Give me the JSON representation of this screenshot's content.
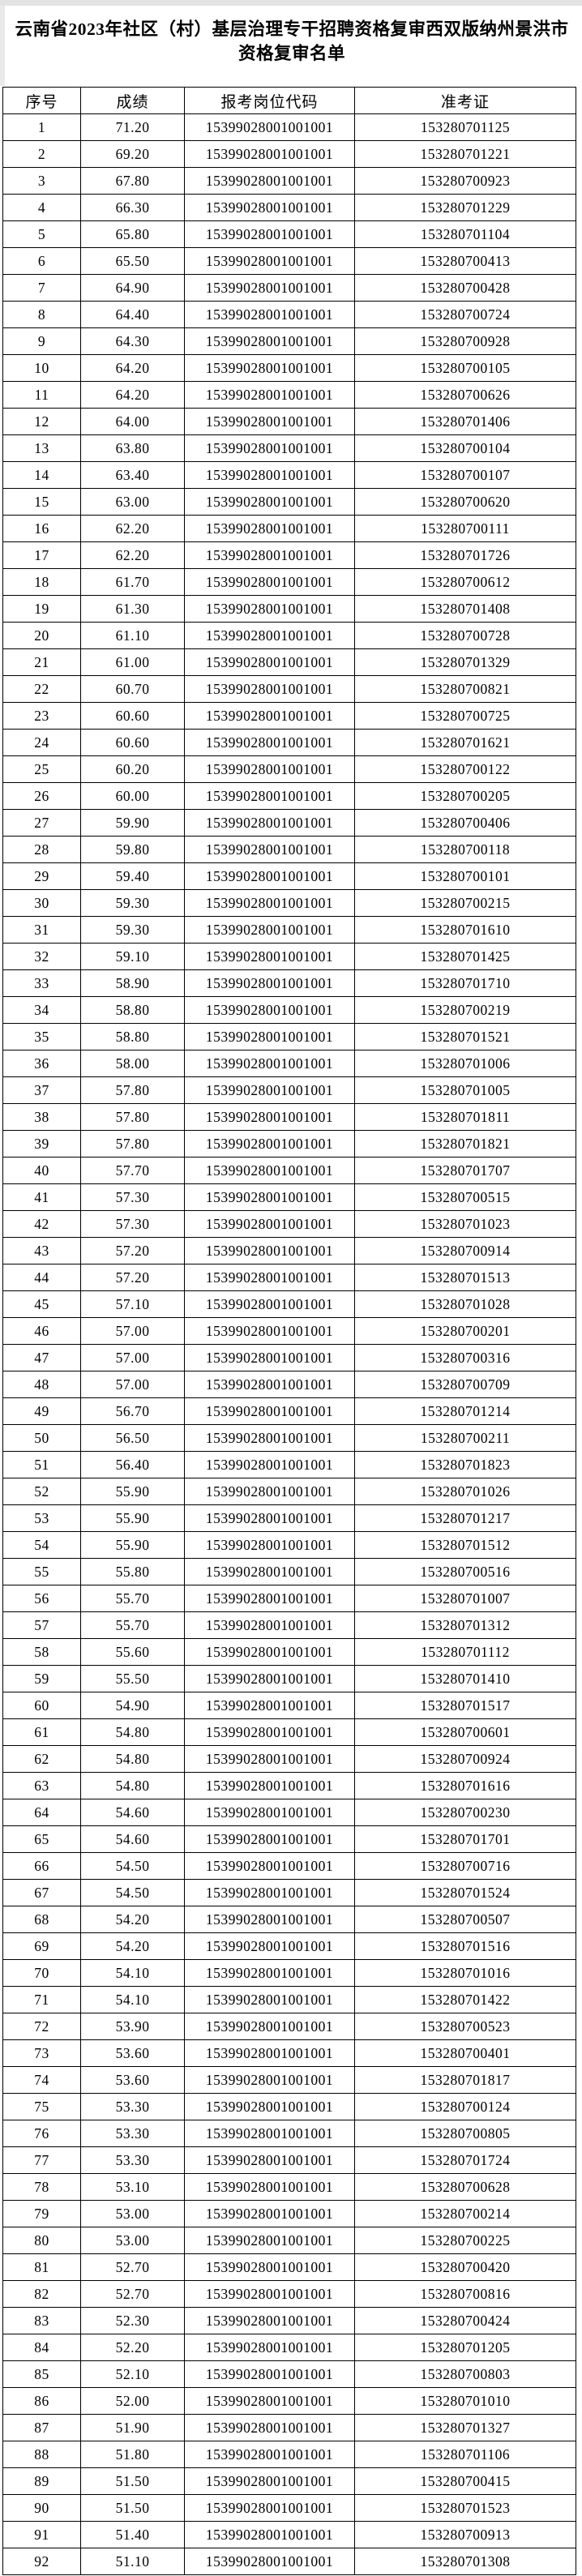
{
  "title": "云南省2023年社区（村）基层治理专干招聘资格复审西双版纳州景洪市资格复审名单",
  "table": {
    "headers": [
      "序号",
      "成绩",
      "报考岗位代码",
      "准考证"
    ],
    "position_code": "15399028001001001",
    "rows": [
      [
        "1",
        "71.20",
        "153280701125"
      ],
      [
        "2",
        "69.20",
        "153280701221"
      ],
      [
        "3",
        "67.80",
        "153280700923"
      ],
      [
        "4",
        "66.30",
        "153280701229"
      ],
      [
        "5",
        "65.80",
        "153280701104"
      ],
      [
        "6",
        "65.50",
        "153280700413"
      ],
      [
        "7",
        "64.90",
        "153280700428"
      ],
      [
        "8",
        "64.40",
        "153280700724"
      ],
      [
        "9",
        "64.30",
        "153280700928"
      ],
      [
        "10",
        "64.20",
        "153280700105"
      ],
      [
        "11",
        "64.20",
        "153280700626"
      ],
      [
        "12",
        "64.00",
        "153280701406"
      ],
      [
        "13",
        "63.80",
        "153280700104"
      ],
      [
        "14",
        "63.40",
        "153280700107"
      ],
      [
        "15",
        "63.00",
        "153280700620"
      ],
      [
        "16",
        "62.20",
        "153280700111"
      ],
      [
        "17",
        "62.20",
        "153280701726"
      ],
      [
        "18",
        "61.70",
        "153280700612"
      ],
      [
        "19",
        "61.30",
        "153280701408"
      ],
      [
        "20",
        "61.10",
        "153280700728"
      ],
      [
        "21",
        "61.00",
        "153280701329"
      ],
      [
        "22",
        "60.70",
        "153280700821"
      ],
      [
        "23",
        "60.60",
        "153280700725"
      ],
      [
        "24",
        "60.60",
        "153280701621"
      ],
      [
        "25",
        "60.20",
        "153280700122"
      ],
      [
        "26",
        "60.00",
        "153280700205"
      ],
      [
        "27",
        "59.90",
        "153280700406"
      ],
      [
        "28",
        "59.80",
        "153280700118"
      ],
      [
        "29",
        "59.40",
        "153280700101"
      ],
      [
        "30",
        "59.30",
        "153280700215"
      ],
      [
        "31",
        "59.30",
        "153280701610"
      ],
      [
        "32",
        "59.10",
        "153280701425"
      ],
      [
        "33",
        "58.90",
        "153280701710"
      ],
      [
        "34",
        "58.80",
        "153280700219"
      ],
      [
        "35",
        "58.80",
        "153280701521"
      ],
      [
        "36",
        "58.00",
        "153280701006"
      ],
      [
        "37",
        "57.80",
        "153280701005"
      ],
      [
        "38",
        "57.80",
        "153280701811"
      ],
      [
        "39",
        "57.80",
        "153280701821"
      ],
      [
        "40",
        "57.70",
        "153280701707"
      ],
      [
        "41",
        "57.30",
        "153280700515"
      ],
      [
        "42",
        "57.30",
        "153280701023"
      ],
      [
        "43",
        "57.20",
        "153280700914"
      ],
      [
        "44",
        "57.20",
        "153280701513"
      ],
      [
        "45",
        "57.10",
        "153280701028"
      ],
      [
        "46",
        "57.00",
        "153280700201"
      ],
      [
        "47",
        "57.00",
        "153280700316"
      ],
      [
        "48",
        "57.00",
        "153280700709"
      ],
      [
        "49",
        "56.70",
        "153280701214"
      ],
      [
        "50",
        "56.50",
        "153280700211"
      ],
      [
        "51",
        "56.40",
        "153280701823"
      ],
      [
        "52",
        "55.90",
        "153280701026"
      ],
      [
        "53",
        "55.90",
        "153280701217"
      ],
      [
        "54",
        "55.90",
        "153280701512"
      ],
      [
        "55",
        "55.80",
        "153280700516"
      ],
      [
        "56",
        "55.70",
        "153280701007"
      ],
      [
        "57",
        "55.70",
        "153280701312"
      ],
      [
        "58",
        "55.60",
        "153280701112"
      ],
      [
        "59",
        "55.50",
        "153280701410"
      ],
      [
        "60",
        "54.90",
        "153280701517"
      ],
      [
        "61",
        "54.80",
        "153280700601"
      ],
      [
        "62",
        "54.80",
        "153280700924"
      ],
      [
        "63",
        "54.80",
        "153280701616"
      ],
      [
        "64",
        "54.60",
        "153280700230"
      ],
      [
        "65",
        "54.60",
        "153280701701"
      ],
      [
        "66",
        "54.50",
        "153280700716"
      ],
      [
        "67",
        "54.50",
        "153280701524"
      ],
      [
        "68",
        "54.20",
        "153280700507"
      ],
      [
        "69",
        "54.20",
        "153280701516"
      ],
      [
        "70",
        "54.10",
        "153280701016"
      ],
      [
        "71",
        "54.10",
        "153280701422"
      ],
      [
        "72",
        "53.90",
        "153280700523"
      ],
      [
        "73",
        "53.60",
        "153280700401"
      ],
      [
        "74",
        "53.60",
        "153280701817"
      ],
      [
        "75",
        "53.30",
        "153280700124"
      ],
      [
        "76",
        "53.30",
        "153280700805"
      ],
      [
        "77",
        "53.30",
        "153280701724"
      ],
      [
        "78",
        "53.10",
        "153280700628"
      ],
      [
        "79",
        "53.00",
        "153280700214"
      ],
      [
        "80",
        "53.00",
        "153280700225"
      ],
      [
        "81",
        "52.70",
        "153280700420"
      ],
      [
        "82",
        "52.70",
        "153280700816"
      ],
      [
        "83",
        "52.30",
        "153280700424"
      ],
      [
        "84",
        "52.20",
        "153280701205"
      ],
      [
        "85",
        "52.10",
        "153280700803"
      ],
      [
        "86",
        "52.00",
        "153280701010"
      ],
      [
        "87",
        "51.90",
        "153280701327"
      ],
      [
        "88",
        "51.80",
        "153280701106"
      ],
      [
        "89",
        "51.50",
        "153280700415"
      ],
      [
        "90",
        "51.50",
        "153280701523"
      ],
      [
        "91",
        "51.40",
        "153280700913"
      ],
      [
        "92",
        "51.10",
        "153280701308"
      ]
    ]
  }
}
